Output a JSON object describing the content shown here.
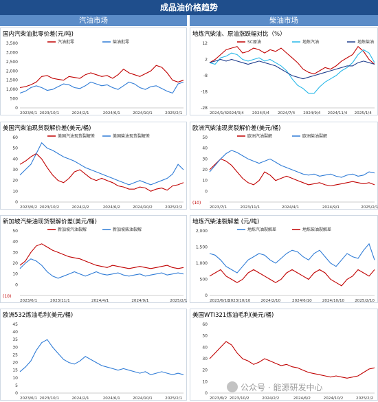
{
  "header": {
    "title": "成品油价格趋势"
  },
  "sections": {
    "gasoline": "汽油市场",
    "diesel": "柴油市场"
  },
  "watermark": "公众号 · 能源研发中心",
  "colors": {
    "red": "#c00000",
    "blue": "#2e7bd6",
    "cyan": "#25b7e8",
    "darkblue": "#1f3d8c",
    "header": "#1f4e8c",
    "section": "#5b8cc8"
  },
  "chart_data": [
    {
      "id": "c1",
      "type": "line",
      "title": "国内汽柴油批零价差(元/吨)",
      "ylim": [
        0,
        3500
      ],
      "yticks": [
        0,
        500,
        1000,
        1500,
        2000,
        2500,
        3000,
        3500
      ],
      "xticks": [
        "2023/6/1",
        "2023/10/1",
        "2024/2/1",
        "2024/6/1",
        "2024/10/1",
        "2025/2/1"
      ],
      "xpos": [
        0,
        0.18,
        0.37,
        0.56,
        0.75,
        0.94
      ],
      "legend_pos": "top",
      "series": [
        {
          "name": "汽油批零",
          "color": "#c00000",
          "values": [
            1100,
            1150,
            1250,
            1400,
            1700,
            1750,
            1600,
            1550,
            1500,
            1700,
            1650,
            1600,
            1800,
            1900,
            1800,
            1700,
            1750,
            1600,
            1800,
            2100,
            1900,
            1800,
            1700,
            1850,
            2000,
            2300,
            2200,
            1900,
            1500,
            1400,
            1500
          ]
        },
        {
          "name": "柴油批零",
          "color": "#2e7bd6",
          "values": [
            800,
            900,
            1100,
            1200,
            1100,
            950,
            1000,
            1150,
            1300,
            1250,
            1100,
            1050,
            1200,
            1400,
            1300,
            1200,
            1250,
            1100,
            1000,
            1200,
            1400,
            1300,
            1100,
            1000,
            1150,
            1200,
            1050,
            900,
            800,
            1300,
            1400
          ]
        }
      ]
    },
    {
      "id": "c2",
      "type": "line",
      "title": "地炼汽柴油、原油涨跌幅对比（%）",
      "ylim": [
        -28,
        12
      ],
      "yticks": [
        12,
        2,
        -8,
        -18,
        -28
      ],
      "xticks": [
        "2024/1/4",
        "2024/3/4",
        "2024/5/4",
        "2024/7/4",
        "2024/9/4",
        "2024/11/4",
        "2025/1/4"
      ],
      "xpos": [
        0,
        0.155,
        0.31,
        0.465,
        0.62,
        0.775,
        0.93
      ],
      "legend_pos": "top",
      "series": [
        {
          "name": "SC原油",
          "color": "#c00000",
          "values": [
            0,
            2,
            5,
            8,
            9,
            10,
            6,
            7,
            9,
            8,
            6,
            8,
            7,
            9,
            6,
            3,
            0,
            -4,
            -6,
            -7,
            -5,
            -3,
            -4,
            -2,
            1,
            3,
            5,
            10,
            7,
            2,
            -1
          ]
        },
        {
          "name": "地炼汽油",
          "color": "#25b7e8",
          "values": [
            0,
            -1,
            3,
            4,
            6,
            5,
            2,
            1,
            2,
            3,
            1,
            2,
            0,
            -2,
            -5,
            -10,
            -14,
            -16,
            -19,
            -19,
            -15,
            -12,
            -10,
            -8,
            -5,
            -3,
            0,
            5,
            8,
            6,
            0
          ]
        },
        {
          "name": "地炼柴油",
          "color": "#1f3d8c",
          "values": [
            0,
            1,
            2,
            1,
            2,
            1,
            0,
            -1,
            0,
            1,
            0,
            -1,
            -2,
            -4,
            -6,
            -8,
            -9,
            -10,
            -9,
            -8,
            -7,
            -6,
            -5,
            -4,
            -3,
            -2,
            -2,
            0,
            1,
            0,
            -1
          ]
        }
      ]
    },
    {
      "id": "c3",
      "type": "line",
      "title": "美国汽柴油现货裂解价差(美元/桶)",
      "ylim": [
        0,
        60
      ],
      "yticks": [
        0,
        10,
        20,
        30,
        40,
        50,
        60
      ],
      "xticks": [
        "2023/6/2",
        "2023/10/2",
        "2024/2/2",
        "2024/6/2",
        "2024/10/2",
        "2025/2/2"
      ],
      "xpos": [
        0,
        0.18,
        0.37,
        0.56,
        0.75,
        0.94
      ],
      "legend_pos": "top",
      "series": [
        {
          "name": "美国汽油现货裂解差",
          "color": "#c00000",
          "values": [
            35,
            38,
            42,
            45,
            40,
            32,
            25,
            20,
            18,
            22,
            28,
            30,
            26,
            22,
            20,
            22,
            20,
            18,
            15,
            14,
            12,
            12,
            14,
            13,
            10,
            12,
            13,
            11,
            15,
            16,
            18
          ]
        },
        {
          "name": "美国柴油现货裂解差",
          "color": "#2e7bd6",
          "values": [
            25,
            30,
            35,
            45,
            55,
            50,
            48,
            45,
            42,
            40,
            38,
            35,
            32,
            30,
            28,
            26,
            24,
            22,
            20,
            18,
            16,
            18,
            20,
            18,
            16,
            18,
            20,
            22,
            26,
            35,
            30
          ]
        }
      ]
    },
    {
      "id": "c4",
      "type": "line",
      "title": "欧洲汽柴油现货裂解价差(美元/桶)",
      "ylim": [
        -10,
        50
      ],
      "yticks": [
        50,
        40,
        30,
        20,
        10,
        0
      ],
      "xticks": [
        "2023/7/1",
        "2023/11/1",
        "2024/4/1",
        "2024/9/1",
        "2025/2/1"
      ],
      "xpos": [
        0,
        0.245,
        0.49,
        0.735,
        0.97
      ],
      "extra_tick": "(10)",
      "legend_pos": "top",
      "series": [
        {
          "name": "欧洲汽油裂解",
          "color": "#c00000",
          "values": [
            20,
            25,
            30,
            28,
            24,
            18,
            12,
            8,
            6,
            10,
            18,
            15,
            10,
            12,
            14,
            12,
            10,
            8,
            6,
            7,
            8,
            6,
            5,
            6,
            7,
            8,
            9,
            8,
            7,
            8,
            6
          ]
        },
        {
          "name": "欧洲柴油裂解",
          "color": "#2e7bd6",
          "values": [
            18,
            24,
            30,
            35,
            38,
            36,
            33,
            30,
            28,
            26,
            28,
            30,
            27,
            24,
            22,
            20,
            18,
            16,
            15,
            16,
            14,
            15,
            16,
            14,
            13,
            15,
            16,
            14,
            15,
            18,
            17
          ]
        }
      ]
    },
    {
      "id": "c5",
      "type": "line",
      "title": "新加坡汽柴油现货裂解价差(美元/桶)",
      "ylim": [
        -10,
        50
      ],
      "yticks": [
        50,
        40,
        30,
        20,
        10,
        0
      ],
      "xticks": [
        "2023/6/1",
        "2023/11/1",
        "2024/4/1",
        "2024/9/1",
        "2025/2/1"
      ],
      "xpos": [
        0,
        0.245,
        0.49,
        0.735,
        0.97
      ],
      "extra_tick": "(10)",
      "legend_pos": "top",
      "series": [
        {
          "name": "新加坡汽油裂解",
          "color": "#c00000",
          "values": [
            18,
            22,
            30,
            36,
            38,
            35,
            32,
            30,
            28,
            26,
            25,
            24,
            22,
            20,
            18,
            17,
            16,
            18,
            17,
            16,
            15,
            16,
            17,
            16,
            15,
            16,
            17,
            18,
            16,
            15,
            16
          ]
        },
        {
          "name": "新加坡柴油裂解",
          "color": "#2e7bd6",
          "values": [
            15,
            20,
            24,
            22,
            18,
            12,
            8,
            6,
            8,
            10,
            12,
            10,
            8,
            10,
            12,
            10,
            9,
            10,
            11,
            9,
            8,
            9,
            10,
            8,
            9,
            10,
            11,
            9,
            10,
            11,
            10
          ]
        }
      ]
    },
    {
      "id": "c6",
      "type": "line",
      "title": "地炼汽柴油裂解差 (元/吨)",
      "ylim": [
        0,
        2000
      ],
      "yticks": [
        0,
        500,
        1000,
        1500,
        2000
      ],
      "xticks": [
        "2023/6/10",
        "2023/10/10",
        "2024/2/10",
        "2024/6/10",
        "2024/10/10",
        "2025/2/10"
      ],
      "xpos": [
        0,
        0.18,
        0.37,
        0.56,
        0.75,
        0.94
      ],
      "legend_pos": "top",
      "series": [
        {
          "name": "地炼汽油裂解差",
          "color": "#2e7bd6",
          "values": [
            1300,
            1250,
            1100,
            900,
            800,
            700,
            900,
            1100,
            1200,
            1300,
            1250,
            1100,
            1000,
            1150,
            1300,
            1400,
            1350,
            1200,
            1100,
            1300,
            1400,
            1200,
            1000,
            900,
            1100,
            1300,
            1200,
            1150,
            1400,
            1600,
            1100
          ]
        },
        {
          "name": "地炼柴油裂解差",
          "color": "#c00000",
          "values": [
            600,
            700,
            800,
            600,
            500,
            400,
            500,
            700,
            800,
            700,
            600,
            500,
            400,
            500,
            700,
            800,
            700,
            600,
            500,
            700,
            800,
            700,
            500,
            400,
            300,
            500,
            600,
            800,
            700,
            600,
            800
          ]
        }
      ]
    },
    {
      "id": "c7",
      "type": "line",
      "title": "欧洲532炼油毛利(美元/桶)",
      "ylim": [
        0,
        45
      ],
      "yticks": [
        0,
        5,
        10,
        15,
        20,
        25,
        30,
        35,
        40,
        45
      ],
      "xticks": [
        "2023/6/1",
        "2023/10/1",
        "2024/2/1",
        "2024/6/1",
        "2024/10/1",
        "2025/2/1"
      ],
      "xpos": [
        0,
        0.18,
        0.37,
        0.56,
        0.75,
        0.94
      ],
      "series": [
        {
          "name": "",
          "color": "#2e7bd6",
          "values": [
            14,
            17,
            21,
            28,
            33,
            35,
            30,
            26,
            22,
            20,
            19,
            21,
            24,
            22,
            20,
            18,
            17,
            16,
            15,
            16,
            15,
            14,
            13,
            14,
            12,
            13,
            14,
            13,
            12,
            13,
            12
          ]
        }
      ]
    },
    {
      "id": "c8",
      "type": "line",
      "title": "美国WTI321炼油毛利(美元/桶)",
      "ylim": [
        0,
        60
      ],
      "yticks": [
        0,
        10,
        20,
        30,
        40,
        50,
        60
      ],
      "xticks": [
        "2023/6/2",
        "2023/10/2",
        "2024/2/2",
        "2024/6/2",
        "2024/10/2",
        "2025/2/2"
      ],
      "xpos": [
        0,
        0.18,
        0.37,
        0.56,
        0.75,
        0.94
      ],
      "series": [
        {
          "name": "",
          "color": "#c00000",
          "values": [
            30,
            35,
            40,
            45,
            42,
            35,
            30,
            28,
            25,
            27,
            30,
            28,
            26,
            24,
            25,
            23,
            22,
            20,
            18,
            17,
            16,
            15,
            14,
            15,
            14,
            13,
            14,
            15,
            18,
            21,
            22
          ]
        }
      ]
    }
  ]
}
